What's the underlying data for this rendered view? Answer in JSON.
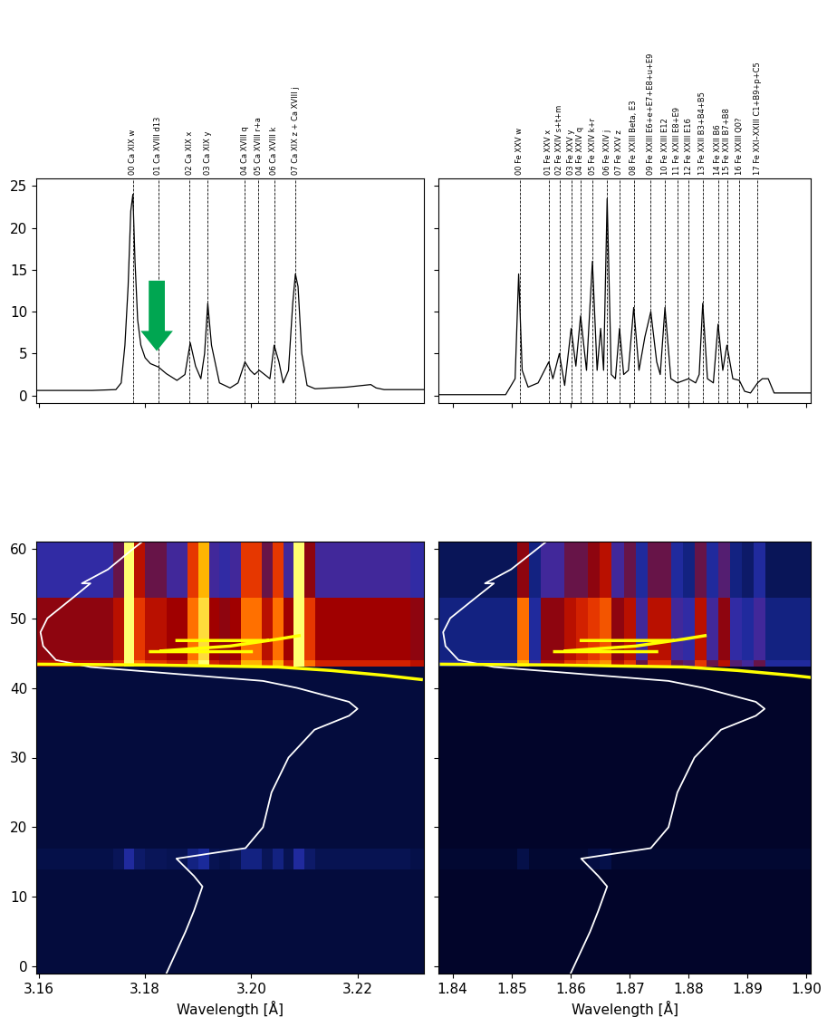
{
  "chart_data": [
    {
      "type": "line",
      "x": [
        3.1595,
        3.17,
        3.1745,
        3.1755,
        3.1762,
        3.1768,
        3.1773,
        3.1777,
        3.1781,
        3.1786,
        3.1792,
        3.18,
        3.181,
        3.1825,
        3.184,
        3.186,
        3.1875,
        3.1885,
        3.1895,
        3.1905,
        3.1912,
        3.1918,
        3.1925,
        3.194,
        3.196,
        3.1975,
        3.1988,
        3.1998,
        3.2006,
        3.2015,
        3.2025,
        3.2035,
        3.2043,
        3.2052,
        3.206,
        3.207,
        3.2078,
        3.2083,
        3.2088,
        3.2095,
        3.2105,
        3.212,
        3.215,
        3.218,
        3.221,
        3.2225,
        3.2235,
        3.225,
        3.2325
      ],
      "values": [
        0.6,
        0.6,
        0.7,
        1.5,
        6,
        13,
        22,
        24,
        16,
        9,
        6,
        4.5,
        3.8,
        3.4,
        2.6,
        1.8,
        2.5,
        6.3,
        3.5,
        2,
        5,
        11,
        6,
        1.5,
        0.9,
        1.5,
        4,
        3,
        2.5,
        3,
        2.5,
        2,
        6,
        4,
        1.5,
        3,
        11,
        14.5,
        13,
        5,
        1.2,
        0.8,
        0.9,
        1,
        1.2,
        1.3,
        0.9,
        0.7,
        0.7
      ],
      "color": "#000000",
      "xlim": [
        3.1595,
        3.2325
      ],
      "xticks": [
        3.16,
        3.18,
        {
          "value": 3.2,
          "label": "3.20"
        },
        3.22
      ],
      "ylim": [
        -0.9,
        25.9
      ],
      "yticks": [
        0,
        5,
        10,
        15,
        20,
        25
      ],
      "tick_labels": "y",
      "lines": {
        "x": [
          3.1777,
          3.1825,
          3.1884,
          3.1918,
          3.1988,
          3.2013,
          3.2043,
          3.2083
        ],
        "labels": [
          "00 Ca XIX w",
          "01 Ca XVIII d13",
          "02 Ca XIX x",
          "03 Ca XIX y",
          "04 Ca XVIII q",
          "05 Ca XVIII r+a",
          "06 Ca XVIII k",
          "07 Ca XIX z + Ca XVIII j"
        ],
        "color": "#000000",
        "line_style": "dashed"
      },
      "arrow": {
        "x": 3.1822,
        "from": 14,
        "to": 5,
        "color": "#00a651"
      }
    },
    {
      "type": "line",
      "x": [
        1.8376,
        1.849,
        1.8506,
        1.8512,
        1.8518,
        1.8528,
        1.8545,
        1.8563,
        1.857,
        1.8581,
        1.859,
        1.8601,
        1.8609,
        1.8617,
        1.8627,
        1.8637,
        1.8645,
        1.8651,
        1.8656,
        1.8662,
        1.8669,
        1.8676,
        1.8683,
        1.869,
        1.8698,
        1.8707,
        1.8716,
        1.8726,
        1.8736,
        1.8746,
        1.8752,
        1.876,
        1.877,
        1.8781,
        1.88,
        1.8812,
        1.8818,
        1.8824,
        1.8832,
        1.8842,
        1.885,
        1.8858,
        1.8865,
        1.8875,
        1.8886,
        1.8895,
        1.8905,
        1.8917,
        1.8925,
        1.8935,
        1.8945,
        1.9007
      ],
      "values": [
        0.1,
        0.1,
        2,
        14.5,
        3,
        1,
        1.5,
        4,
        2,
        5,
        1.2,
        8,
        3.5,
        9.5,
        3,
        16,
        3,
        8,
        3,
        23.5,
        2.5,
        2,
        8,
        2.5,
        3,
        10.5,
        3,
        7,
        10,
        4,
        2.5,
        10.5,
        2,
        1.5,
        2,
        1.5,
        2.5,
        11,
        2,
        1.5,
        8.5,
        3,
        6,
        2,
        1.8,
        0.5,
        0.3,
        1.5,
        2,
        2,
        0.3,
        0.3
      ],
      "color": "#000000",
      "xlim": [
        1.8376,
        1.9007
      ],
      "xticks": [
        1.84,
        1.85,
        1.86,
        1.87,
        1.88,
        1.89,
        {
          "value": 1.9,
          "label": "1.90"
        }
      ],
      "ylim": [
        -0.9,
        25.9
      ],
      "yticks": [
        0,
        5,
        10,
        15,
        20,
        25
      ],
      "tick_labels": false,
      "lines": {
        "x": [
          1.8514,
          1.8563,
          1.8581,
          1.8601,
          1.8617,
          1.8637,
          1.8662,
          1.8683,
          1.8707,
          1.8736,
          1.876,
          1.8781,
          1.88,
          1.8824,
          1.885,
          1.8865,
          1.8886,
          1.8917
        ],
        "labels": [
          "00 Fe XXV w",
          "01 Fe XXV x",
          "02 Fe XXIV s+t+m",
          "03 Fe XXV y",
          "04 Fe XXIV q",
          "05 Fe XXIV k+r",
          "06 Fe XXIV j",
          "07 Fe XXV z",
          "08 Fe XXIII Beta, E3",
          "09 Fe XXIII E6+e+E7+E8+u+E9",
          "10 Fe XXIII E12",
          "11 Fe XXIII E8+E9",
          "12 Fe XXIII E16",
          "13 Fe XXII B3+B4+B5",
          "14 Fe XXII B6",
          "15 Fe XXII B7+B8",
          "16 Fe XXIII Q0?",
          "17 Fe XXI–XXIII C1+B9+p+C5"
        ],
        "color": "#000000",
        "line_style": "dashed"
      }
    },
    {
      "type": "heatmap",
      "x_edges": [
        3.158,
        3.16,
        3.162,
        3.164,
        3.166,
        3.168,
        3.17,
        3.172,
        3.174,
        3.176,
        3.178,
        3.18,
        3.182,
        3.184,
        3.186,
        3.188,
        3.19,
        3.192,
        3.194,
        3.196,
        3.198,
        3.2,
        3.202,
        3.204,
        3.206,
        3.208,
        3.21,
        3.212,
        3.214,
        3.216,
        3.218,
        3.22,
        3.222,
        3.224,
        3.226,
        3.228,
        3.23,
        3.232,
        3.234
      ],
      "y_edges": [
        -1,
        14,
        17,
        43,
        44,
        53,
        61
      ],
      "cells": [
        [
          0.6,
          0.6,
          0.6,
          0.6,
          0.6,
          0.6,
          0.6,
          0.6,
          0.6,
          0.6,
          0.6,
          0.6,
          0.6,
          0.6,
          0.6,
          0.6,
          0.6,
          0.6,
          0.6,
          0.6,
          0.6,
          0.6,
          0.6,
          0.6,
          0.6,
          0.6,
          0.6,
          0.6,
          0.6,
          0.6,
          0.6,
          0.6,
          0.6,
          0.6,
          0.6,
          0.6,
          0.6,
          0.6
        ],
        [
          0.8,
          0.8,
          0.8,
          0.8,
          0.8,
          0.8,
          0.8,
          0.8,
          1,
          2,
          1.2,
          1,
          1,
          0.9,
          0.9,
          1.5,
          1.8,
          0.9,
          0.8,
          0.9,
          1.5,
          1.5,
          1,
          1.5,
          0.9,
          2,
          1.2,
          0.9,
          0.9,
          0.9,
          0.9,
          0.9,
          0.9,
          0.9,
          0.9,
          0.9,
          0.8,
          0.8
        ],
        [
          0.6,
          0.6,
          0.6,
          0.6,
          0.6,
          0.6,
          0.6,
          0.6,
          0.6,
          0.6,
          0.6,
          0.6,
          0.6,
          0.6,
          0.6,
          0.6,
          0.6,
          0.6,
          0.6,
          0.6,
          0.6,
          0.6,
          0.6,
          0.6,
          0.6,
          0.6,
          0.6,
          0.6,
          0.6,
          0.6,
          0.6,
          0.6,
          0.6,
          0.6,
          0.6,
          0.6,
          0.6,
          0.6
        ],
        [
          6,
          6,
          6,
          6,
          6,
          6,
          6,
          6,
          7,
          10,
          8,
          7,
          7,
          6.5,
          6.5,
          9,
          10,
          6.5,
          6,
          6.5,
          9,
          9,
          7,
          9,
          6.5,
          10,
          8,
          6.5,
          6.5,
          6.5,
          6.5,
          6.5,
          6.5,
          6.5,
          6.5,
          6.5,
          6,
          6
        ],
        [
          5,
          5,
          5,
          5,
          5,
          5,
          5,
          5,
          6,
          10,
          7,
          6,
          6,
          5.5,
          5.5,
          8,
          9.5,
          5.5,
          5,
          5.5,
          8,
          8,
          6,
          8,
          5.5,
          10,
          7,
          5.5,
          5.5,
          5.5,
          5.5,
          5.5,
          5.5,
          5.5,
          5.5,
          5.5,
          5,
          5
        ],
        [
          2.5,
          2.5,
          2.5,
          2.5,
          2.5,
          2.5,
          2.5,
          2.5,
          4,
          10,
          6,
          4,
          4,
          3,
          3,
          7,
          9,
          3,
          2.5,
          3,
          7,
          7,
          4,
          7,
          3,
          10,
          5,
          3,
          3,
          3,
          3,
          3,
          3,
          3,
          3,
          3,
          2.5,
          2.5
        ]
      ],
      "clim": [
        0,
        10
      ],
      "xlim": [
        3.1595,
        3.2325
      ],
      "xticks": [
        3.16,
        3.18,
        {
          "value": 3.2,
          "label": "3.20"
        },
        3.22
      ],
      "ylim": [
        -1,
        61
      ],
      "yticks": [
        0,
        10,
        20,
        30,
        40,
        50,
        60
      ],
      "xlabel": "Wavelength [Å]",
      "light_curve": {
        "x": [
          3.184,
          3.1876,
          3.1892,
          3.1908,
          3.1892,
          3.1859,
          3.1989,
          3.2022,
          3.2038,
          3.207,
          3.2119,
          3.2184,
          3.22,
          3.2184,
          3.2086,
          3.2022,
          3.1859,
          3.1697,
          3.1632,
          3.1608,
          3.1603,
          3.1616,
          3.1665,
          3.1697,
          3.1681,
          3.173,
          3.1778,
          3.1795
        ],
        "y": [
          -1,
          5,
          8,
          11.5,
          13,
          15.5,
          17,
          20,
          25,
          30,
          34,
          36,
          37,
          38,
          40,
          41,
          42,
          43,
          44,
          46,
          48,
          50,
          53,
          55,
          55,
          57,
          60,
          61
        ],
        "color": "#ffffff"
      },
      "flux_curve": {
        "x": [
          3.232,
          3.225,
          3.215,
          3.205,
          3.18,
          3.16,
          null,
          3.183,
          3.196,
          3.205,
          3.209,
          null,
          3.186,
          3.203,
          null,
          3.181,
          3.2
        ],
        "y": [
          41.2,
          41.8,
          42.5,
          43.0,
          43.3,
          43.4,
          null,
          45.3,
          46,
          47,
          47.5,
          null,
          46.8,
          46.8,
          null,
          45.2,
          45.2
        ],
        "color": "#ffff00"
      }
    },
    {
      "type": "heatmap",
      "x_edges": [
        1.837,
        1.839,
        1.841,
        1.843,
        1.845,
        1.847,
        1.849,
        1.851,
        1.853,
        1.855,
        1.857,
        1.859,
        1.861,
        1.863,
        1.865,
        1.867,
        1.869,
        1.871,
        1.873,
        1.875,
        1.877,
        1.879,
        1.881,
        1.883,
        1.885,
        1.887,
        1.889,
        1.891,
        1.893,
        1.895,
        1.897,
        1.899,
        1.901,
        1.903
      ],
      "y_edges": [
        -1,
        14,
        17,
        43,
        44,
        53,
        61
      ],
      "cells": [
        [
          0.3,
          0.3,
          0.3,
          0.3,
          0.3,
          0.3,
          0.3,
          0.3,
          0.3,
          0.3,
          0.3,
          0.3,
          0.3,
          0.3,
          0.3,
          0.3,
          0.3,
          0.3,
          0.3,
          0.3,
          0.3,
          0.3,
          0.3,
          0.3,
          0.3,
          0.3,
          0.3,
          0.3,
          0.3,
          0.3,
          0.3,
          0.3,
          0.3
        ],
        [
          0.4,
          0.4,
          0.4,
          0.4,
          0.4,
          0.4,
          0.4,
          0.8,
          0.4,
          0.4,
          0.4,
          0.4,
          0.4,
          0.7,
          0.8,
          0.4,
          0.4,
          0.4,
          0.4,
          0.4,
          0.4,
          0.4,
          0.4,
          0.4,
          0.4,
          0.4,
          0.4,
          0.4,
          0.4,
          0.4,
          0.4,
          0.4,
          0.4
        ],
        [
          0.3,
          0.3,
          0.3,
          0.3,
          0.3,
          0.3,
          0.3,
          0.3,
          0.3,
          0.3,
          0.3,
          0.3,
          0.3,
          0.3,
          0.3,
          0.3,
          0.3,
          0.3,
          0.3,
          0.3,
          0.3,
          0.3,
          0.3,
          0.3,
          0.3,
          0.3,
          0.3,
          0.3,
          0.3,
          0.3,
          0.3,
          0.3,
          0.3
        ],
        [
          2,
          2,
          2,
          2,
          2,
          2,
          2,
          9,
          3,
          6,
          6,
          7,
          7.5,
          8,
          8.5,
          6,
          7,
          4,
          7,
          7,
          4,
          3.5,
          7,
          4,
          6,
          3.5,
          3,
          4,
          2,
          2,
          2,
          2,
          2
        ],
        [
          1.5,
          1.5,
          1.5,
          1.5,
          1.5,
          1.5,
          1.5,
          8,
          2,
          5,
          5,
          6,
          6.5,
          7,
          7.5,
          5,
          6,
          3,
          6,
          6,
          3,
          2.5,
          6,
          3,
          5,
          2.5,
          2,
          3,
          1.5,
          1.5,
          1.5,
          1.5,
          1.5
        ],
        [
          1,
          1,
          1,
          1,
          1,
          1,
          1,
          5,
          1.5,
          3,
          3,
          4,
          4,
          5,
          6,
          3,
          4,
          2,
          4,
          4,
          2,
          1.5,
          4,
          2,
          3.5,
          1.5,
          1.2,
          2,
          1,
          1,
          1,
          1,
          1
        ]
      ],
      "clim": [
        0,
        10
      ],
      "xlim": [
        1.8376,
        1.9007
      ],
      "xticks": [
        1.84,
        1.85,
        1.86,
        1.87,
        1.88,
        1.89,
        {
          "value": 1.9,
          "label": "1.90"
        }
      ],
      "ylim": [
        -1,
        61
      ],
      "yticks": [
        0,
        10,
        20,
        30,
        40,
        50,
        60
      ],
      "tick_labels": "x",
      "xlabel": "Wavelength [Å]",
      "light_curve": {
        "x": [
          1.86,
          1.8633,
          1.8647,
          1.8662,
          1.8647,
          1.8618,
          1.8736,
          1.8766,
          1.8781,
          1.881,
          1.8855,
          1.8914,
          1.8929,
          1.8914,
          1.8825,
          1.8766,
          1.8618,
          1.847,
          1.841,
          1.8388,
          1.8384,
          1.8396,
          1.844,
          1.847,
          1.8455,
          1.8499,
          1.8544,
          1.8559
        ],
        "y": [
          -1,
          5,
          8,
          11.5,
          13,
          15.5,
          17,
          20,
          25,
          30,
          34,
          36,
          37,
          38,
          40,
          41,
          42,
          43,
          44,
          46,
          48,
          50,
          53,
          55,
          55,
          57,
          60,
          61
        ],
        "color": "#ffffff"
      },
      "flux_curve": {
        "x": [
          1.9039,
          1.8975,
          1.8883,
          1.8792,
          1.8563,
          1.8381,
          null,
          1.8591,
          1.871,
          1.8792,
          1.8828,
          null,
          1.8618,
          1.8773,
          null,
          1.8573,
          1.8746
        ],
        "y": [
          41.2,
          41.8,
          42.5,
          43.0,
          43.3,
          43.4,
          null,
          45.3,
          46,
          47,
          47.5,
          null,
          46.8,
          46.8,
          null,
          45.2,
          45.2
        ],
        "color": "#ffff00"
      }
    }
  ]
}
